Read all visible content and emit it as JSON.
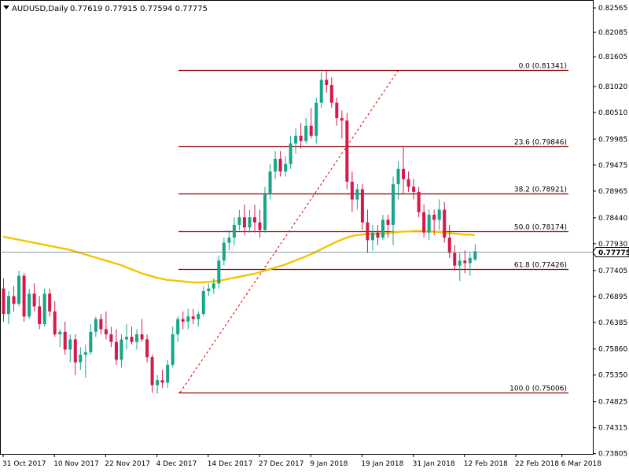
{
  "window": {
    "symbol": "AUDUSD,Daily",
    "ohlc": "0.77619 0.77915 0.77594 0.77775"
  },
  "colors": {
    "background": "#ffffff",
    "bull_candle": "#17a589",
    "bear_candle": "#d6194b",
    "ma_line": "#f5c400",
    "fib_line": "#8b0000",
    "price_line": "#5f7c8a",
    "trendline": "#d60000"
  },
  "price_label": "0.77775",
  "chart_data": {
    "type": "candlestick",
    "title": "AUDUSD,Daily",
    "ylim": [
      0.738,
      0.8272
    ],
    "y_ticks": [
      "0.82565",
      "0.82085",
      "0.81605",
      "0.81020",
      "0.80510",
      "0.79985",
      "0.79475",
      "0.78965",
      "0.78440",
      "0.77930",
      "0.77405",
      "0.76895",
      "0.76385",
      "0.75860",
      "0.75350",
      "0.74825",
      "0.74315",
      "0.73805"
    ],
    "x_ticks": [
      "31 Oct 2017",
      "10 Nov 2017",
      "22 Nov 2017",
      "4 Dec 2017",
      "14 Dec 2017",
      "27 Dec 2017",
      "9 Jan 2018",
      "19 Jan 2018",
      "31 Jan 2018",
      "12 Feb 2018",
      "22 Feb 2018",
      "6 Mar 2018"
    ],
    "x_tick_index": [
      0,
      10,
      20,
      30,
      40,
      50,
      60,
      70,
      80,
      90,
      100,
      109
    ],
    "candles": [
      {
        "o": 0.7705,
        "h": 0.7725,
        "l": 0.764,
        "c": 0.7655
      },
      {
        "o": 0.7655,
        "h": 0.77,
        "l": 0.7635,
        "c": 0.769
      },
      {
        "o": 0.769,
        "h": 0.771,
        "l": 0.766,
        "c": 0.7675
      },
      {
        "o": 0.7675,
        "h": 0.774,
        "l": 0.767,
        "c": 0.773
      },
      {
        "o": 0.773,
        "h": 0.7735,
        "l": 0.764,
        "c": 0.765
      },
      {
        "o": 0.765,
        "h": 0.7705,
        "l": 0.7645,
        "c": 0.7695
      },
      {
        "o": 0.7695,
        "h": 0.7715,
        "l": 0.766,
        "c": 0.767
      },
      {
        "o": 0.767,
        "h": 0.769,
        "l": 0.7625,
        "c": 0.7635
      },
      {
        "o": 0.7635,
        "h": 0.7705,
        "l": 0.763,
        "c": 0.7695
      },
      {
        "o": 0.7695,
        "h": 0.7705,
        "l": 0.765,
        "c": 0.766
      },
      {
        "o": 0.766,
        "h": 0.768,
        "l": 0.761,
        "c": 0.7615
      },
      {
        "o": 0.7615,
        "h": 0.7625,
        "l": 0.759,
        "c": 0.762
      },
      {
        "o": 0.762,
        "h": 0.764,
        "l": 0.7575,
        "c": 0.7585
      },
      {
        "o": 0.7585,
        "h": 0.7615,
        "l": 0.756,
        "c": 0.7605
      },
      {
        "o": 0.7605,
        "h": 0.7615,
        "l": 0.7535,
        "c": 0.756
      },
      {
        "o": 0.756,
        "h": 0.759,
        "l": 0.7545,
        "c": 0.7575
      },
      {
        "o": 0.7575,
        "h": 0.7595,
        "l": 0.753,
        "c": 0.758
      },
      {
        "o": 0.758,
        "h": 0.7635,
        "l": 0.7575,
        "c": 0.762
      },
      {
        "o": 0.762,
        "h": 0.765,
        "l": 0.761,
        "c": 0.7645
      },
      {
        "o": 0.7645,
        "h": 0.7655,
        "l": 0.7615,
        "c": 0.7625
      },
      {
        "o": 0.7625,
        "h": 0.766,
        "l": 0.7605,
        "c": 0.7615
      },
      {
        "o": 0.7615,
        "h": 0.763,
        "l": 0.759,
        "c": 0.76
      },
      {
        "o": 0.76,
        "h": 0.7625,
        "l": 0.7555,
        "c": 0.7565
      },
      {
        "o": 0.7565,
        "h": 0.7615,
        "l": 0.755,
        "c": 0.7605
      },
      {
        "o": 0.7605,
        "h": 0.7635,
        "l": 0.7585,
        "c": 0.761
      },
      {
        "o": 0.761,
        "h": 0.763,
        "l": 0.7595,
        "c": 0.76
      },
      {
        "o": 0.76,
        "h": 0.7625,
        "l": 0.7585,
        "c": 0.7615
      },
      {
        "o": 0.7615,
        "h": 0.7645,
        "l": 0.76,
        "c": 0.7605
      },
      {
        "o": 0.7605,
        "h": 0.7615,
        "l": 0.756,
        "c": 0.757
      },
      {
        "o": 0.757,
        "h": 0.7575,
        "l": 0.75,
        "c": 0.7515
      },
      {
        "o": 0.7515,
        "h": 0.7535,
        "l": 0.7498,
        "c": 0.7525
      },
      {
        "o": 0.7525,
        "h": 0.7545,
        "l": 0.751,
        "c": 0.752
      },
      {
        "o": 0.752,
        "h": 0.7565,
        "l": 0.751,
        "c": 0.7555
      },
      {
        "o": 0.7555,
        "h": 0.763,
        "l": 0.755,
        "c": 0.7615
      },
      {
        "o": 0.7615,
        "h": 0.765,
        "l": 0.76,
        "c": 0.7645
      },
      {
        "o": 0.7645,
        "h": 0.766,
        "l": 0.7625,
        "c": 0.764
      },
      {
        "o": 0.764,
        "h": 0.7665,
        "l": 0.7625,
        "c": 0.765
      },
      {
        "o": 0.765,
        "h": 0.7665,
        "l": 0.7635,
        "c": 0.7645
      },
      {
        "o": 0.7645,
        "h": 0.766,
        "l": 0.763,
        "c": 0.7655
      },
      {
        "o": 0.7655,
        "h": 0.771,
        "l": 0.765,
        "c": 0.77
      },
      {
        "o": 0.77,
        "h": 0.7715,
        "l": 0.769,
        "c": 0.7705
      },
      {
        "o": 0.7705,
        "h": 0.7725,
        "l": 0.7695,
        "c": 0.7715
      },
      {
        "o": 0.7715,
        "h": 0.777,
        "l": 0.7705,
        "c": 0.776
      },
      {
        "o": 0.776,
        "h": 0.7805,
        "l": 0.775,
        "c": 0.7795
      },
      {
        "o": 0.7795,
        "h": 0.782,
        "l": 0.778,
        "c": 0.7805
      },
      {
        "o": 0.7805,
        "h": 0.7845,
        "l": 0.779,
        "c": 0.783
      },
      {
        "o": 0.783,
        "h": 0.786,
        "l": 0.782,
        "c": 0.7845
      },
      {
        "o": 0.7845,
        "h": 0.787,
        "l": 0.781,
        "c": 0.7825
      },
      {
        "o": 0.7825,
        "h": 0.786,
        "l": 0.7815,
        "c": 0.7845
      },
      {
        "o": 0.7845,
        "h": 0.787,
        "l": 0.7815,
        "c": 0.7835
      },
      {
        "o": 0.7835,
        "h": 0.786,
        "l": 0.7805,
        "c": 0.782
      },
      {
        "o": 0.782,
        "h": 0.7905,
        "l": 0.7815,
        "c": 0.789
      },
      {
        "o": 0.789,
        "h": 0.795,
        "l": 0.788,
        "c": 0.7935
      },
      {
        "o": 0.7935,
        "h": 0.7975,
        "l": 0.792,
        "c": 0.796
      },
      {
        "o": 0.796,
        "h": 0.7975,
        "l": 0.7925,
        "c": 0.7935
      },
      {
        "o": 0.7935,
        "h": 0.7965,
        "l": 0.7925,
        "c": 0.795
      },
      {
        "o": 0.795,
        "h": 0.8005,
        "l": 0.794,
        "c": 0.799
      },
      {
        "o": 0.799,
        "h": 0.802,
        "l": 0.797,
        "c": 0.8005
      },
      {
        "o": 0.8005,
        "h": 0.803,
        "l": 0.798,
        "c": 0.7995
      },
      {
        "o": 0.7995,
        "h": 0.804,
        "l": 0.799,
        "c": 0.8025
      },
      {
        "o": 0.8025,
        "h": 0.806,
        "l": 0.8,
        "c": 0.8005
      },
      {
        "o": 0.8005,
        "h": 0.808,
        "l": 0.799,
        "c": 0.807
      },
      {
        "o": 0.807,
        "h": 0.813,
        "l": 0.806,
        "c": 0.8115
      },
      {
        "o": 0.8115,
        "h": 0.8134,
        "l": 0.809,
        "c": 0.8105
      },
      {
        "o": 0.8105,
        "h": 0.812,
        "l": 0.806,
        "c": 0.807
      },
      {
        "o": 0.807,
        "h": 0.808,
        "l": 0.8025,
        "c": 0.804
      },
      {
        "o": 0.804,
        "h": 0.8055,
        "l": 0.8,
        "c": 0.8035
      },
      {
        "o": 0.8035,
        "h": 0.805,
        "l": 0.79,
        "c": 0.7915
      },
      {
        "o": 0.7915,
        "h": 0.7935,
        "l": 0.7855,
        "c": 0.788
      },
      {
        "o": 0.788,
        "h": 0.791,
        "l": 0.786,
        "c": 0.79
      },
      {
        "o": 0.79,
        "h": 0.791,
        "l": 0.782,
        "c": 0.7835
      },
      {
        "o": 0.7835,
        "h": 0.786,
        "l": 0.7775,
        "c": 0.78
      },
      {
        "o": 0.78,
        "h": 0.783,
        "l": 0.778,
        "c": 0.7815
      },
      {
        "o": 0.7815,
        "h": 0.783,
        "l": 0.779,
        "c": 0.7805
      },
      {
        "o": 0.7805,
        "h": 0.785,
        "l": 0.78,
        "c": 0.784
      },
      {
        "o": 0.784,
        "h": 0.785,
        "l": 0.7805,
        "c": 0.783
      },
      {
        "o": 0.783,
        "h": 0.7925,
        "l": 0.779,
        "c": 0.791
      },
      {
        "o": 0.791,
        "h": 0.7955,
        "l": 0.788,
        "c": 0.794
      },
      {
        "o": 0.794,
        "h": 0.7985,
        "l": 0.789,
        "c": 0.792
      },
      {
        "o": 0.792,
        "h": 0.7935,
        "l": 0.7895,
        "c": 0.7905
      },
      {
        "o": 0.7905,
        "h": 0.792,
        "l": 0.788,
        "c": 0.7895
      },
      {
        "o": 0.7895,
        "h": 0.7905,
        "l": 0.7845,
        "c": 0.7855
      },
      {
        "o": 0.7855,
        "h": 0.787,
        "l": 0.7805,
        "c": 0.7815
      },
      {
        "o": 0.7815,
        "h": 0.786,
        "l": 0.78,
        "c": 0.785
      },
      {
        "o": 0.785,
        "h": 0.786,
        "l": 0.781,
        "c": 0.784
      },
      {
        "o": 0.784,
        "h": 0.788,
        "l": 0.782,
        "c": 0.786
      },
      {
        "o": 0.786,
        "h": 0.7875,
        "l": 0.7795,
        "c": 0.7805
      },
      {
        "o": 0.7805,
        "h": 0.783,
        "l": 0.7765,
        "c": 0.7775
      },
      {
        "o": 0.7775,
        "h": 0.779,
        "l": 0.774,
        "c": 0.775
      },
      {
        "o": 0.775,
        "h": 0.7775,
        "l": 0.772,
        "c": 0.776
      },
      {
        "o": 0.776,
        "h": 0.778,
        "l": 0.7735,
        "c": 0.7755
      },
      {
        "o": 0.7755,
        "h": 0.7775,
        "l": 0.773,
        "c": 0.7765
      },
      {
        "o": 0.7762,
        "h": 0.7792,
        "l": 0.7759,
        "c": 0.7778
      }
    ],
    "moving_average": [
      0.7807,
      0.7805,
      0.7803,
      0.7801,
      0.7799,
      0.7797,
      0.7795,
      0.7793,
      0.7791,
      0.7789,
      0.7787,
      0.7785,
      0.7783,
      0.7781,
      0.7778,
      0.7775,
      0.7772,
      0.7769,
      0.7766,
      0.7763,
      0.776,
      0.7757,
      0.7754,
      0.7751,
      0.7747,
      0.7743,
      0.7739,
      0.7735,
      0.7732,
      0.7729,
      0.7726,
      0.7724,
      0.7722,
      0.7721,
      0.772,
      0.7719,
      0.7718,
      0.7717,
      0.7717,
      0.7717,
      0.7718,
      0.7719,
      0.772,
      0.7722,
      0.7724,
      0.7726,
      0.7728,
      0.773,
      0.7732,
      0.7734,
      0.7737,
      0.774,
      0.7743,
      0.7746,
      0.7749,
      0.7752,
      0.7756,
      0.776,
      0.7764,
      0.7768,
      0.7772,
      0.7777,
      0.7782,
      0.7787,
      0.7792,
      0.7797,
      0.7801,
      0.7805,
      0.7808,
      0.781,
      0.7811,
      0.7812,
      0.7812,
      0.7813,
      0.7813,
      0.7814,
      0.7815,
      0.7816,
      0.7817,
      0.7817,
      0.7818,
      0.7818,
      0.7818,
      0.7817,
      0.7817,
      0.7816,
      0.7815,
      0.7814,
      0.7813,
      0.7812,
      0.7811,
      0.7811,
      0.781
    ],
    "fibonacci": [
      {
        "level": "0.0",
        "price": 0.81341,
        "label": "0.0 (0.81341)"
      },
      {
        "level": "23.6",
        "price": 0.79846,
        "label": "23.6 (0.79846)"
      },
      {
        "level": "38.2",
        "price": 0.78921,
        "label": "38.2 (0.78921)"
      },
      {
        "level": "50.0",
        "price": 0.78174,
        "label": "50.0 (0.78174)"
      },
      {
        "level": "61.8",
        "price": 0.77426,
        "label": "61.8 (0.77426)"
      },
      {
        "level": "100.0",
        "price": 0.75006,
        "label": "100.0 (0.75006)"
      }
    ],
    "current_price": 0.77775,
    "grid": false
  }
}
